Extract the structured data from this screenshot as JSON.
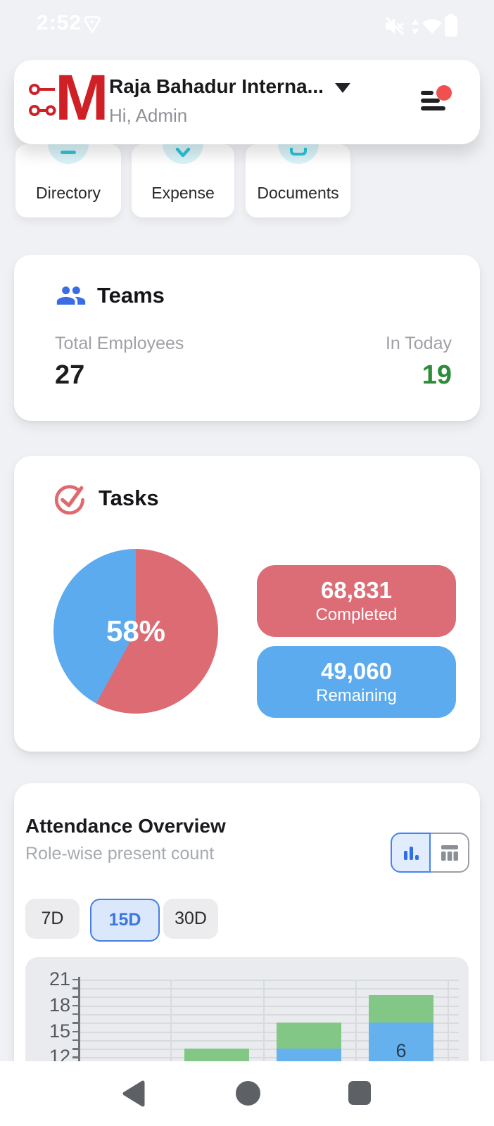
{
  "status_bar": {
    "time": "2:52"
  },
  "header": {
    "logo_letter": "M",
    "company": "Raja Bahadur Interna...",
    "greeting": "Hi, Admin"
  },
  "quick_actions": [
    {
      "label": "Directory",
      "icon": "directory-icon"
    },
    {
      "label": "Expense",
      "icon": "expense-icon"
    },
    {
      "label": "Documents",
      "icon": "documents-icon"
    }
  ],
  "teams": {
    "title": "Teams",
    "total_label": "Total Employees",
    "total": "27",
    "in_today_label": "In Today",
    "in_today": "19"
  },
  "tasks": {
    "title": "Tasks",
    "percent_label": "58%",
    "completed_pct": 58,
    "completed_value": "68,831",
    "completed_label": "Completed",
    "remaining_value": "49,060",
    "remaining_label": "Remaining"
  },
  "attendance": {
    "title": "Attendance Overview",
    "subtitle": "Role-wise present count",
    "view_toggle": {
      "selected": "chart",
      "options": [
        "chart",
        "table"
      ]
    },
    "filters": [
      {
        "label": "7D",
        "selected": false
      },
      {
        "label": "15D",
        "selected": true
      },
      {
        "label": "30D",
        "selected": false
      }
    ]
  },
  "chart_data": {
    "type": "bar",
    "stacked": true,
    "title": "Attendance Overview",
    "subtitle": "Role-wise present count",
    "y_ticks_visible": [
      21,
      18,
      15,
      12
    ],
    "y_minor_tick_step": 1,
    "x_labels_visible": false,
    "cropped_bottom": true,
    "grid": true,
    "series_colors": {
      "green": "#82c785",
      "blue": "#64b1ee"
    },
    "bars": [
      {
        "segments": [
          {
            "color": "green",
            "from": null,
            "to": 13
          }
        ]
      },
      {
        "segments": [
          {
            "color": "blue",
            "from": null,
            "to": 13
          },
          {
            "color": "green",
            "from": 13,
            "to": 16
          }
        ]
      },
      {
        "segments": [
          {
            "color": "blue",
            "from": null,
            "to": 16,
            "label": "6"
          },
          {
            "color": "green",
            "from": 16,
            "to": 19.2
          }
        ]
      }
    ]
  },
  "colors": {
    "brand_red": "#cf2026",
    "task_red": "#dd6b74",
    "task_blue": "#5babee",
    "teams_icon_blue": "#3b6ce6",
    "positive_green": "#2e8b3a",
    "chart_green": "#82c785",
    "chart_blue": "#64b1ee",
    "cyan_icon": "#2bc4d9",
    "notification_dot": "#f15050",
    "selected_blue": "#3a78dd"
  },
  "icons": {
    "status_bar": [
      "vpn-shield-icon",
      "mute-icon",
      "network-arrows-icon",
      "wifi-icon",
      "battery-icon"
    ],
    "header": [
      "logo-m-icon",
      "dropdown-caret-icon",
      "menu-icon",
      "notification-dot"
    ],
    "teams": "group-icon",
    "tasks": "check-circle-icon",
    "attendance_toggle": [
      "bar-chart-icon",
      "table-icon"
    ],
    "nav": [
      "back-icon",
      "home-icon",
      "recents-icon"
    ]
  }
}
